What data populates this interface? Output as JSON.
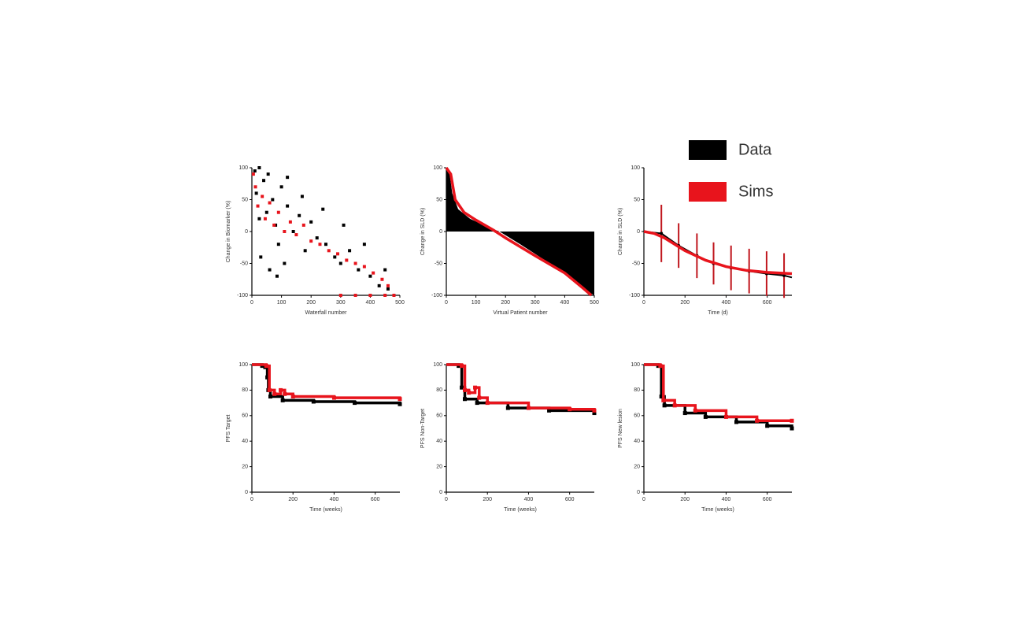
{
  "legend": {
    "position": "top-right",
    "items": [
      {
        "name": "Data",
        "color": "#000000"
      },
      {
        "name": "Sims",
        "color": "#e8141c"
      }
    ]
  },
  "chart_data": [
    {
      "type": "scatter",
      "x_label": "Waterfall number",
      "y_label": "Change in Biomarker (%)",
      "xlim": [
        0,
        500
      ],
      "xticks": [
        0,
        100,
        200,
        300,
        400,
        500
      ],
      "ylim": [
        -100,
        100
      ],
      "yticks": [
        -100,
        -50,
        0,
        50,
        100
      ],
      "series": [
        {
          "color": "#000000",
          "x": [
            10,
            15,
            25,
            30,
            40,
            50,
            60,
            70,
            80,
            90,
            100,
            110,
            120,
            140,
            160,
            180,
            200,
            220,
            250,
            280,
            300,
            330,
            360,
            400,
            430,
            460,
            25,
            55,
            85,
            120,
            170,
            240,
            310,
            380,
            450
          ],
          "values": [
            95,
            60,
            20,
            -40,
            80,
            30,
            -60,
            50,
            10,
            -20,
            70,
            -50,
            40,
            0,
            25,
            -30,
            15,
            -10,
            -20,
            -40,
            -50,
            -30,
            -60,
            -70,
            -85,
            -90,
            100,
            90,
            -70,
            85,
            55,
            35,
            10,
            -20,
            -60
          ]
        },
        {
          "color": "#e8141c",
          "x": [
            5,
            12,
            20,
            35,
            45,
            60,
            75,
            90,
            110,
            130,
            150,
            175,
            200,
            230,
            260,
            290,
            320,
            350,
            380,
            410,
            440,
            460,
            300,
            350,
            400,
            450,
            480
          ],
          "values": [
            90,
            70,
            40,
            55,
            20,
            45,
            10,
            30,
            0,
            15,
            -5,
            10,
            -15,
            -20,
            -30,
            -35,
            -45,
            -50,
            -55,
            -65,
            -75,
            -85,
            -100,
            -100,
            -100,
            -100,
            -100
          ]
        }
      ]
    },
    {
      "type": "line",
      "x_label": "Virtual Patient number",
      "y_label": "Change in SLD (%)",
      "xlim": [
        0,
        500
      ],
      "xticks": [
        0,
        100,
        200,
        300,
        400,
        500
      ],
      "ylim": [
        -100,
        100
      ],
      "yticks": [
        -100,
        -50,
        0,
        50,
        100
      ],
      "series": [
        {
          "color": "#000000",
          "area": true,
          "x": [
            0,
            10,
            20,
            40,
            80,
            150,
            180,
            250,
            300,
            400,
            450,
            480,
            500
          ],
          "values": [
            100,
            95,
            60,
            35,
            20,
            5,
            0,
            -20,
            -35,
            -65,
            -85,
            -95,
            -100
          ]
        },
        {
          "color": "#e8141c",
          "x": [
            0,
            15,
            30,
            60,
            100,
            160,
            200,
            300,
            400,
            460,
            490
          ],
          "values": [
            100,
            90,
            50,
            30,
            18,
            2,
            -10,
            -38,
            -65,
            -88,
            -100
          ]
        }
      ]
    },
    {
      "type": "line",
      "x_label": "Time (d)",
      "y_label": "Change in SLD (%)",
      "xlim": [
        0,
        720
      ],
      "xticks": [
        0,
        200,
        400,
        600
      ],
      "ylim": [
        -100,
        100
      ],
      "yticks": [
        -100,
        -50,
        0,
        50,
        100
      ],
      "series": [
        {
          "color": "#000000",
          "x": [
            0,
            85,
            169,
            258,
            339,
            424,
            512,
            597,
            682,
            720
          ],
          "values": [
            0,
            -3,
            -22,
            -38,
            -50,
            -57,
            -62,
            -66,
            -69,
            -72
          ],
          "errors": [
            null,
            45,
            35,
            35,
            33,
            35,
            35,
            35,
            35,
            null
          ]
        },
        {
          "color": "#e8141c",
          "x": [
            0,
            50,
            100,
            200,
            300,
            400,
            500,
            600,
            720
          ],
          "values": [
            0,
            -3,
            -10,
            -30,
            -45,
            -55,
            -61,
            -64,
            -66
          ]
        }
      ]
    },
    {
      "type": "step",
      "x_label": "Time (weeks)",
      "y_label": "PFS Target",
      "xlim": [
        0,
        720
      ],
      "xticks": [
        0,
        200,
        400,
        600
      ],
      "ylim": [
        0,
        100
      ],
      "yticks": [
        0,
        20,
        40,
        60,
        80,
        100
      ],
      "series": [
        {
          "color": "#000000",
          "x": [
            0,
            50,
            65,
            75,
            80,
            90,
            150,
            300,
            500,
            720
          ],
          "values": [
            100,
            99,
            98,
            90,
            80,
            75,
            72,
            71,
            70,
            69
          ]
        },
        {
          "color": "#e8141c",
          "x": [
            0,
            70,
            85,
            110,
            140,
            160,
            200,
            400,
            720
          ],
          "values": [
            100,
            99,
            80,
            77,
            80,
            77,
            75,
            74,
            73
          ]
        }
      ]
    },
    {
      "type": "step",
      "x_label": "Time (weeks)",
      "y_label": "PFS Non-Target",
      "xlim": [
        0,
        720
      ],
      "xticks": [
        0,
        200,
        400,
        600
      ],
      "ylim": [
        0,
        100
      ],
      "yticks": [
        0,
        20,
        40,
        60,
        80,
        100
      ],
      "series": [
        {
          "color": "#000000",
          "x": [
            0,
            60,
            75,
            90,
            150,
            300,
            500,
            720
          ],
          "values": [
            100,
            99,
            82,
            73,
            70,
            66,
            64,
            62
          ]
        },
        {
          "color": "#e8141c",
          "x": [
            0,
            75,
            90,
            110,
            140,
            160,
            200,
            400,
            600,
            720
          ],
          "values": [
            100,
            99,
            80,
            78,
            82,
            74,
            70,
            66,
            65,
            64
          ]
        }
      ]
    },
    {
      "type": "step",
      "x_label": "Time (weeks)",
      "y_label": "PFS New lesion",
      "xlim": [
        0,
        720
      ],
      "xticks": [
        0,
        200,
        400,
        600
      ],
      "ylim": [
        0,
        100
      ],
      "yticks": [
        0,
        20,
        40,
        60,
        80,
        100
      ],
      "series": [
        {
          "color": "#000000",
          "x": [
            0,
            70,
            85,
            100,
            200,
            300,
            450,
            600,
            720
          ],
          "values": [
            100,
            99,
            75,
            68,
            62,
            59,
            55,
            52,
            50
          ]
        },
        {
          "color": "#e8141c",
          "x": [
            0,
            80,
            95,
            150,
            250,
            400,
            550,
            720
          ],
          "values": [
            100,
            99,
            72,
            68,
            64,
            59,
            56,
            56
          ]
        }
      ]
    }
  ]
}
